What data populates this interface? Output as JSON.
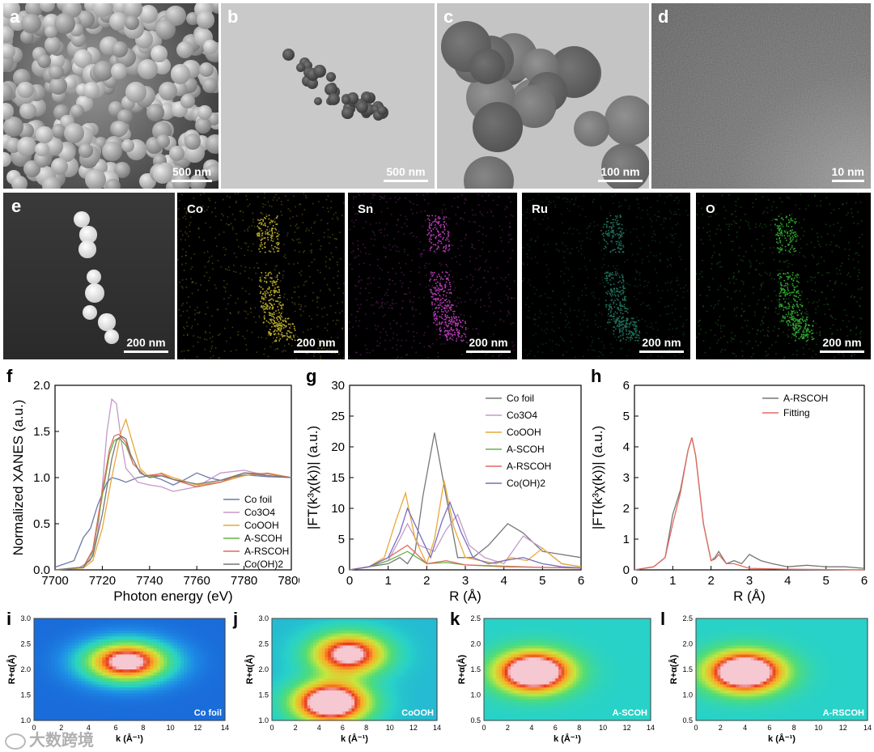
{
  "panel_labels": {
    "a": "a",
    "b": "b",
    "c": "c",
    "d": "d",
    "e": "e",
    "f": "f",
    "g": "g",
    "h": "h",
    "i": "i",
    "j": "j",
    "k": "k",
    "l": "l"
  },
  "micrographs": {
    "a_scale": "500 nm",
    "b_scale": "500 nm",
    "c_scale": "100 nm",
    "d_scale": "10 nm"
  },
  "eds": {
    "e_scale": "200 nm",
    "maps": [
      {
        "element": "Co",
        "scale": "200 nm",
        "color": "#b7a92a"
      },
      {
        "element": "Sn",
        "scale": "200 nm",
        "color": "#b43bb4"
      },
      {
        "element": "Ru",
        "scale": "200 nm",
        "color": "#1f6f5a"
      },
      {
        "element": "O",
        "scale": "200 nm",
        "color": "#2fa52f"
      }
    ]
  },
  "watermark": "大数跨境",
  "chart_data": [
    {
      "type": "line",
      "xlabel": "Photon energy (eV)",
      "ylabel": "Normalized XANES (a.u.)",
      "xlim": [
        7700,
        7800
      ],
      "ylim": [
        0,
        2.0
      ],
      "xticks": [
        "7700",
        "7720",
        "7740",
        "7760",
        "7780",
        "7800"
      ],
      "yticks": [
        "0.0",
        "0.5",
        "1.0",
        "1.5",
        "2.0"
      ],
      "legend_position": "lower-right",
      "series": [
        {
          "name": "Co foil",
          "color": "#6a7aa8",
          "x": [
            7700,
            7708,
            7712,
            7715,
            7718,
            7722,
            7724,
            7727,
            7730,
            7735,
            7740,
            7745,
            7750,
            7755,
            7760,
            7765,
            7770,
            7775,
            7780,
            7790,
            7800
          ],
          "y": [
            0.03,
            0.1,
            0.35,
            0.45,
            0.7,
            0.95,
            1.0,
            0.98,
            0.95,
            1.0,
            1.02,
            0.98,
            0.92,
            0.98,
            1.05,
            1.0,
            0.97,
            1.0,
            1.03,
            1.01,
            1.0
          ]
        },
        {
          "name": "Co3O4",
          "color": "#c39ac8",
          "x": [
            7700,
            7710,
            7715,
            7718,
            7720,
            7722,
            7724,
            7726,
            7728,
            7730,
            7735,
            7740,
            7745,
            7750,
            7760,
            7770,
            7780,
            7790,
            7800
          ],
          "y": [
            0.0,
            0.02,
            0.1,
            0.4,
            0.9,
            1.5,
            1.85,
            1.8,
            1.4,
            1.1,
            0.95,
            0.92,
            0.9,
            0.85,
            0.9,
            1.05,
            1.08,
            1.02,
            1.0
          ]
        },
        {
          "name": "CoOOH",
          "color": "#e7a93a",
          "x": [
            7700,
            7712,
            7716,
            7720,
            7724,
            7726,
            7728,
            7730,
            7732,
            7736,
            7740,
            7745,
            7750,
            7760,
            7770,
            7780,
            7790,
            7800
          ],
          "y": [
            0.0,
            0.02,
            0.1,
            0.45,
            1.0,
            1.25,
            1.5,
            1.63,
            1.45,
            1.1,
            1.0,
            1.05,
            1.0,
            0.92,
            0.95,
            1.02,
            1.05,
            1.0
          ]
        },
        {
          "name": "A-SCOH",
          "color": "#68b246",
          "x": [
            7700,
            7712,
            7716,
            7720,
            7723,
            7725,
            7727,
            7730,
            7733,
            7738,
            7745,
            7750,
            7760,
            7770,
            7780,
            7790,
            7800
          ],
          "y": [
            0.0,
            0.03,
            0.2,
            0.8,
            1.25,
            1.4,
            1.43,
            1.35,
            1.15,
            1.02,
            1.02,
            0.98,
            0.9,
            0.95,
            1.05,
            1.04,
            1.0
          ]
        },
        {
          "name": "A-RSCOH",
          "color": "#e26a5f",
          "x": [
            7700,
            7712,
            7716,
            7720,
            7723,
            7725,
            7727,
            7730,
            7733,
            7738,
            7745,
            7750,
            7760,
            7770,
            7780,
            7790,
            7800
          ],
          "y": [
            0.0,
            0.03,
            0.22,
            0.85,
            1.3,
            1.45,
            1.47,
            1.38,
            1.15,
            1.02,
            1.04,
            0.98,
            0.9,
            0.95,
            1.05,
            1.04,
            1.0
          ]
        },
        {
          "name": "Co(OH)2",
          "color": "#777777",
          "x": [
            7700,
            7712,
            7716,
            7720,
            7724,
            7726,
            7728,
            7730,
            7732,
            7736,
            7740,
            7745,
            7750,
            7760,
            7770,
            7780,
            7790,
            7800
          ],
          "y": [
            0.0,
            0.03,
            0.15,
            0.6,
            1.2,
            1.4,
            1.45,
            1.42,
            1.25,
            1.05,
            1.0,
            1.02,
            0.98,
            0.93,
            0.97,
            1.05,
            1.02,
            1.0
          ]
        }
      ]
    },
    {
      "type": "line",
      "xlabel": "R (Å)",
      "ylabel": "|FT(k³χ(k))| (a.u.)",
      "xlim": [
        0,
        6
      ],
      "ylim": [
        0,
        30
      ],
      "xticks": [
        "0",
        "1",
        "2",
        "3",
        "4",
        "5",
        "6"
      ],
      "yticks": [
        "0",
        "5",
        "10",
        "15",
        "20",
        "25",
        "30"
      ],
      "legend_position": "top-right",
      "series": [
        {
          "name": "Co foil",
          "color": "#777777",
          "x": [
            0,
            0.5,
            1.0,
            1.3,
            1.5,
            1.7,
            1.9,
            2.2,
            2.5,
            2.8,
            3.2,
            3.6,
            4.1,
            4.5,
            5.0,
            5.5,
            6.0
          ],
          "y": [
            0,
            0.5,
            1.0,
            2.0,
            1.0,
            3,
            12,
            22.3,
            12,
            2,
            2,
            4,
            7.5,
            6,
            3,
            2.5,
            2
          ]
        },
        {
          "name": "Co3O4",
          "color": "#c39ac8",
          "x": [
            0,
            0.5,
            1.0,
            1.3,
            1.5,
            1.8,
            2.2,
            2.5,
            2.8,
            3.1,
            3.5,
            4.0,
            4.5,
            5.0,
            5.5,
            6.0
          ],
          "y": [
            0,
            0.5,
            1.5,
            5,
            7.5,
            4,
            3,
            6.5,
            9,
            4,
            2,
            1,
            5.5,
            3.5,
            1,
            0.5
          ]
        },
        {
          "name": "CoOOH",
          "color": "#e7a93a",
          "x": [
            0,
            0.5,
            0.9,
            1.2,
            1.45,
            1.7,
            2.0,
            2.2,
            2.45,
            2.7,
            3.0,
            3.4,
            3.8,
            4.2,
            4.6,
            5.0,
            5.5,
            6.0
          ],
          "y": [
            0,
            0.5,
            2,
            8,
            12.5,
            5,
            1,
            5,
            14.5,
            7,
            2,
            1.5,
            1,
            2,
            1.5,
            3.5,
            1,
            0.5
          ]
        },
        {
          "name": "A-SCOH",
          "color": "#68b246",
          "x": [
            0,
            0.5,
            1.0,
            1.5,
            2.0,
            2.5,
            3.0,
            4.0,
            5.0,
            6.0
          ],
          "y": [
            0,
            0.5,
            1.5,
            3,
            1,
            1.2,
            0.8,
            0.5,
            0.4,
            0.3
          ]
        },
        {
          "name": "A-RSCOH",
          "color": "#e26a5f",
          "x": [
            0,
            0.5,
            1.0,
            1.5,
            2.0,
            2.5,
            3.0,
            4.0,
            5.0,
            6.0
          ],
          "y": [
            0,
            0.5,
            2,
            4,
            1,
            1.5,
            0.8,
            0.6,
            0.4,
            0.3
          ]
        },
        {
          "name": "Co(OH)2",
          "color": "#7a6cc1",
          "x": [
            0,
            0.5,
            1.0,
            1.3,
            1.5,
            1.8,
            2.1,
            2.4,
            2.6,
            2.9,
            3.2,
            3.6,
            4.0,
            4.5,
            5.0,
            5.5,
            6.0
          ],
          "y": [
            0,
            0.5,
            2,
            6,
            10,
            6,
            2,
            8,
            11,
            6,
            2,
            1,
            1.5,
            2,
            1,
            0.5,
            0.3
          ]
        }
      ]
    },
    {
      "type": "line",
      "xlabel": "R (Å)",
      "ylabel": "|FT(k³χ(k))| (a.u.)",
      "xlim": [
        0,
        6
      ],
      "ylim": [
        0,
        6
      ],
      "xticks": [
        "0",
        "1",
        "2",
        "3",
        "4",
        "5",
        "6"
      ],
      "yticks": [
        "0",
        "1",
        "2",
        "3",
        "4",
        "5",
        "6"
      ],
      "legend_position": "top-right",
      "series": [
        {
          "name": "A-RSCOH",
          "color": "#777777",
          "x": [
            0,
            0.5,
            0.8,
            1.0,
            1.2,
            1.4,
            1.5,
            1.6,
            1.8,
            2.0,
            2.1,
            2.2,
            2.4,
            2.6,
            2.8,
            3.0,
            3.3,
            3.6,
            4.0,
            4.5,
            5.0,
            5.5,
            6.0
          ],
          "y": [
            0,
            0.1,
            0.4,
            1.8,
            2.6,
            3.9,
            4.3,
            3.7,
            1.5,
            0.3,
            0.4,
            0.6,
            0.2,
            0.3,
            0.2,
            0.5,
            0.3,
            0.2,
            0.1,
            0.15,
            0.1,
            0.1,
            0.05
          ]
        },
        {
          "name": "Fitting",
          "color": "#e26a5f",
          "x": [
            0,
            0.5,
            0.8,
            1.0,
            1.2,
            1.4,
            1.5,
            1.6,
            1.8,
            2.0,
            2.1,
            2.2,
            2.4,
            2.6,
            3.0,
            4.0,
            5.0,
            6.0
          ],
          "y": [
            0,
            0.1,
            0.4,
            1.5,
            2.5,
            3.9,
            4.3,
            3.7,
            1.5,
            0.3,
            0.35,
            0.5,
            0.2,
            0.2,
            0.05,
            0.02,
            0.01,
            0
          ]
        }
      ]
    },
    {
      "type": "heatmap",
      "name_label": "Co foil",
      "xlabel": "k (Å⁻¹)",
      "ylabel": "R+α(Å)",
      "xlim": [
        0,
        14
      ],
      "ylim": [
        1.0,
        3.0
      ],
      "xticks": [
        "0",
        "2",
        "4",
        "6",
        "8",
        "10",
        "12",
        "14"
      ],
      "yticks": [
        "1.0",
        "1.5",
        "2.0",
        "2.5",
        "3.0"
      ],
      "peaks": [
        {
          "k": 6.8,
          "r": 2.15,
          "amp": 1.0
        }
      ]
    },
    {
      "type": "heatmap",
      "name_label": "CoOOH",
      "xlabel": "k (Å⁻¹)",
      "ylabel": "R+α(Å)",
      "xlim": [
        0,
        14
      ],
      "ylim": [
        1.0,
        3.0
      ],
      "xticks": [
        "0",
        "2",
        "4",
        "6",
        "8",
        "10",
        "12",
        "14"
      ],
      "yticks": [
        "1.0",
        "1.5",
        "2.0",
        "2.5",
        "3.0"
      ],
      "peaks": [
        {
          "k": 5.0,
          "r": 1.35,
          "amp": 1.0
        },
        {
          "k": 6.5,
          "r": 2.3,
          "amp": 0.8
        }
      ]
    },
    {
      "type": "heatmap",
      "name_label": "A-SCOH",
      "xlabel": "k (Å⁻¹)",
      "ylabel": "R+α(Å)",
      "xlim": [
        0,
        14
      ],
      "ylim": [
        0.5,
        2.5
      ],
      "xticks": [
        "0",
        "2",
        "4",
        "6",
        "8",
        "10",
        "12",
        "14"
      ],
      "yticks": [
        "0.5",
        "1.0",
        "1.5",
        "2.0",
        "2.5"
      ],
      "peaks": [
        {
          "k": 4.2,
          "r": 1.45,
          "amp": 1.0
        }
      ]
    },
    {
      "type": "heatmap",
      "name_label": "A-RSCOH",
      "xlabel": "k (Å⁻¹)",
      "ylabel": "R+α(Å)",
      "xlim": [
        0,
        14
      ],
      "ylim": [
        0.5,
        2.5
      ],
      "xticks": [
        "0",
        "2",
        "4",
        "6",
        "8",
        "10",
        "12",
        "14"
      ],
      "yticks": [
        "0.5",
        "1.0",
        "1.5",
        "2.0",
        "2.5"
      ],
      "peaks": [
        {
          "k": 4.0,
          "r": 1.45,
          "amp": 1.0
        }
      ]
    }
  ]
}
